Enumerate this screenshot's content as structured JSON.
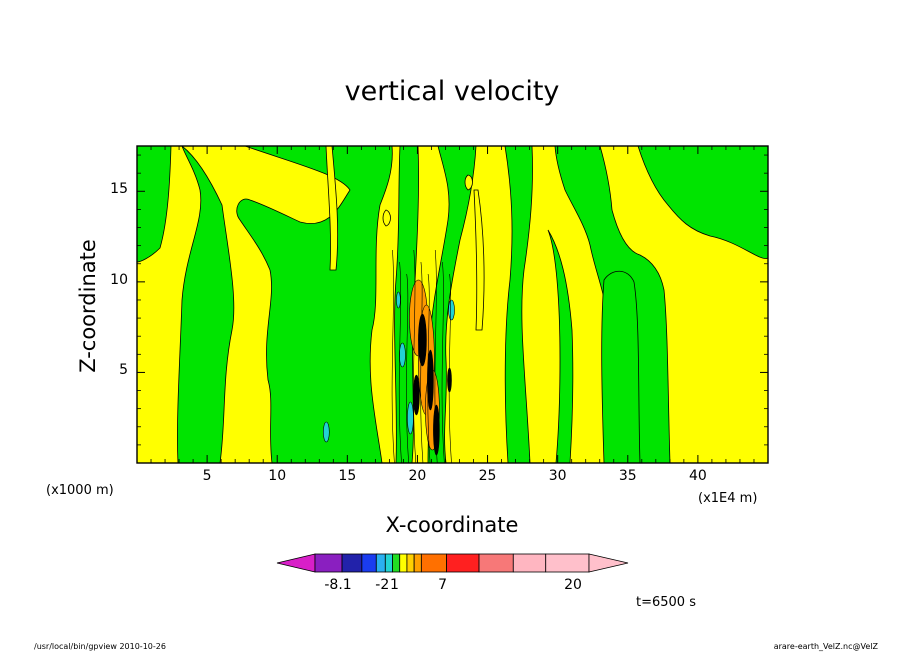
{
  "chart_data": {
    "type": "heatmap",
    "title": "vertical velocity",
    "xlabel": "X-coordinate",
    "ylabel": "Z-coordinate",
    "x_unit_label": "(x1000 m)",
    "x_scale_label": "(x1E4 m)",
    "time_label": "t=6500 s",
    "xlim": [
      0,
      45
    ],
    "ylim": [
      0,
      17.5
    ],
    "x_ticks": [
      5,
      10,
      15,
      20,
      25,
      30,
      35,
      40
    ],
    "y_ticks": [
      5,
      10,
      15
    ],
    "dominant_levels": [
      "green (about -1 to 0)",
      "yellow (about 0 to 1)"
    ],
    "convective_core_x_range": [
      18.5,
      22
    ],
    "colorbar": {
      "labels": [
        {
          "text": "-8.1",
          "value": -8.1
        },
        {
          "text": "-2",
          "value": -2
        },
        {
          "text": "1",
          "value": 1
        },
        {
          "text": "7",
          "value": 7
        },
        {
          "text": "20",
          "value": 20
        }
      ],
      "colors": [
        "#d81fc8",
        "#8a1fc0",
        "#2222aa",
        "#1a3cf0",
        "#2ab0f0",
        "#22d3d3",
        "#22dd22",
        "#ffff00",
        "#ffd000",
        "#ffa000",
        "#ff7000",
        "#ff2020",
        "#f77878",
        "#ffb6c1",
        "#ffc0cb"
      ]
    }
  },
  "footer": {
    "left": "/usr/local/bin/gpview   2010-10-26",
    "right": "arare-earth_VelZ.nc@VelZ"
  },
  "colors": {
    "green": "#00e400",
    "yellow": "#ffff00",
    "cyan": "#22d3d3",
    "orange": "#ff9a00",
    "black": "#000000"
  }
}
